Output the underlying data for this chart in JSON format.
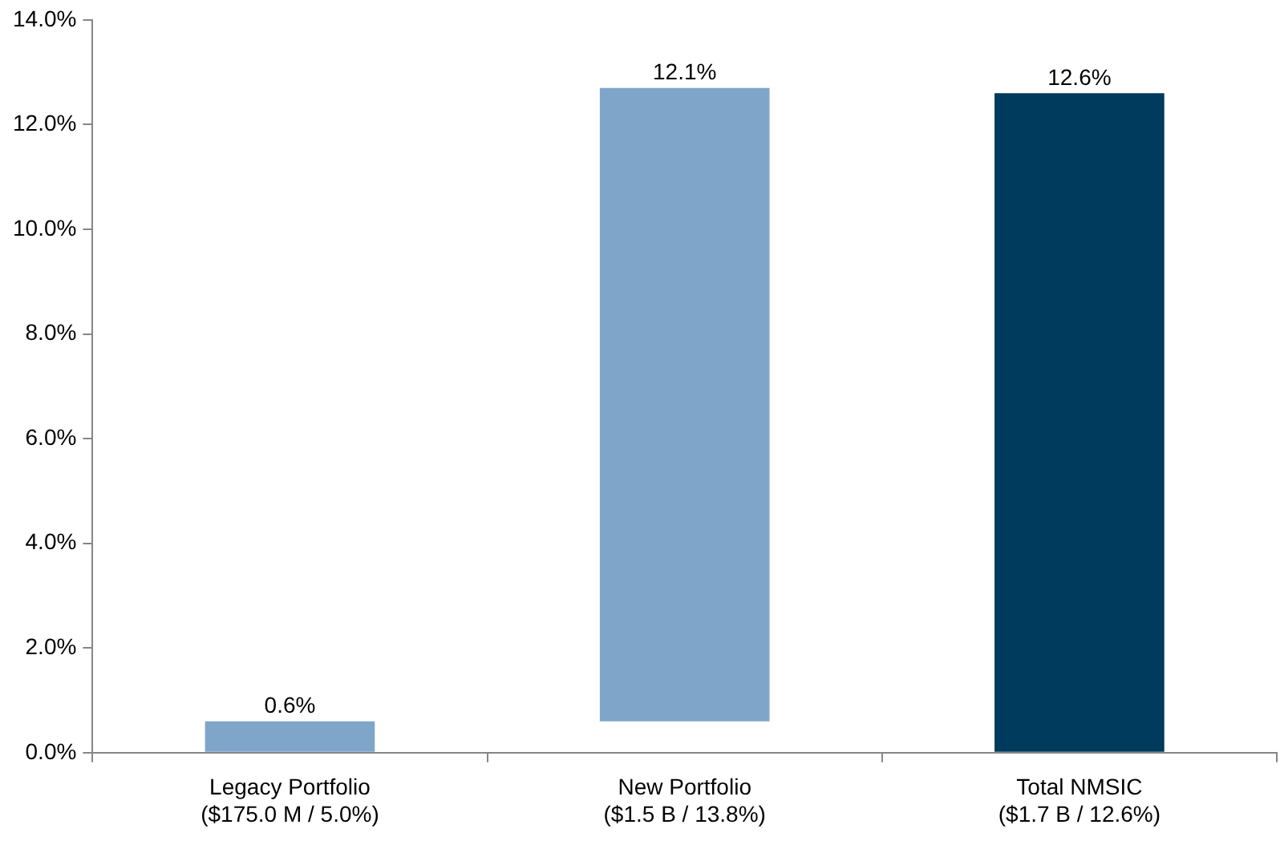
{
  "chart_data": {
    "type": "bar",
    "categories": [
      "Legacy Portfolio\n($175.0 M / 5.0%)",
      "New Portfolio\n($1.5 B / 13.8%)",
      "Total NMSIC\n($1.7 B / 12.6%)"
    ],
    "values": [
      0.6,
      12.1,
      12.6
    ],
    "base": [
      0,
      0.6,
      0
    ],
    "colors": [
      "#7fa6c9",
      "#7fa6c9",
      "#003a5c"
    ],
    "value_labels": [
      "0.6%",
      "12.1%",
      "12.6%"
    ],
    "ylim": [
      0,
      14
    ],
    "yticks": [
      {
        "value": 0,
        "label": "0.0%"
      },
      {
        "value": 2,
        "label": "2.0%"
      },
      {
        "value": 4,
        "label": "4.0%"
      },
      {
        "value": 6,
        "label": "6.0%"
      },
      {
        "value": 8,
        "label": "8.0%"
      },
      {
        "value": 10,
        "label": "10.0%"
      },
      {
        "value": 12,
        "label": "12.0%"
      },
      {
        "value": 14,
        "label": "14.0%"
      }
    ],
    "grid": false,
    "legend": false
  }
}
